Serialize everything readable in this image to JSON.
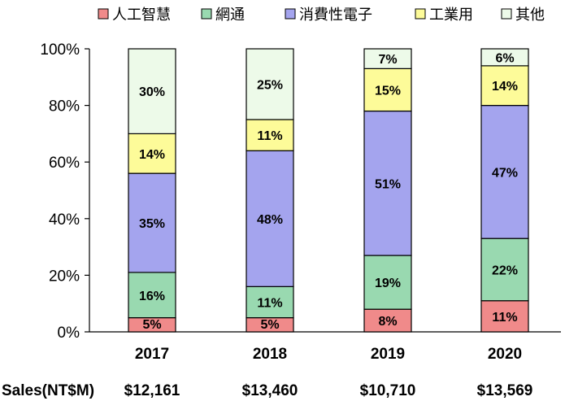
{
  "chart_data": {
    "type": "bar",
    "stacked": true,
    "categories": [
      "2017",
      "2018",
      "2019",
      "2020"
    ],
    "series": [
      {
        "name": "人工智慧",
        "color": "#f08a8a",
        "values": [
          5,
          5,
          8,
          11
        ],
        "labels": [
          "5%",
          "5%",
          "8%",
          "11%"
        ]
      },
      {
        "name": "網通",
        "color": "#99d9b0",
        "values": [
          16,
          11,
          19,
          22
        ],
        "labels": [
          "16%",
          "11%",
          "19%",
          "22%"
        ]
      },
      {
        "name": "消費性電子",
        "color": "#a4a4ee",
        "values": [
          35,
          48,
          51,
          47
        ],
        "labels": [
          "35%",
          "48%",
          "51%",
          "47%"
        ]
      },
      {
        "name": "工業用",
        "color": "#fdfb99",
        "values": [
          14,
          11,
          15,
          14
        ],
        "labels": [
          "14%",
          "11%",
          "15%",
          "14%"
        ]
      },
      {
        "name": "其他",
        "color": "#edfae9",
        "values": [
          30,
          25,
          7,
          6
        ],
        "labels": [
          "30%",
          "25%",
          "7%",
          "6%"
        ]
      }
    ],
    "ylim": [
      0,
      100
    ],
    "yticks": [
      "0%",
      "20%",
      "40%",
      "60%",
      "80%",
      "100%"
    ],
    "legend_position": "top",
    "grid": false
  },
  "sales": {
    "label": "Sales(NT$M)",
    "values": [
      "$12,161",
      "$13,460",
      "$10,710",
      "$13,569"
    ]
  }
}
